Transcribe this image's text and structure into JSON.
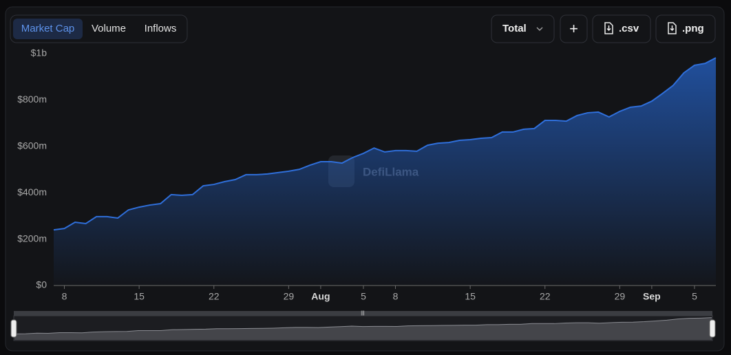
{
  "ui": {
    "tabs": [
      "Market Cap",
      "Volume",
      "Inflows"
    ],
    "active_tab": 0,
    "buttons": [
      "Total",
      "+",
      ".csv",
      ".png"
    ],
    "watermark": "DefiLlama"
  },
  "chart_data": {
    "type": "area",
    "color": "#2f6fdb",
    "categories": [
      null,
      "8",
      null,
      null,
      null,
      null,
      null,
      null,
      "15",
      null,
      null,
      null,
      null,
      null,
      null,
      "22",
      null,
      null,
      null,
      null,
      null,
      null,
      "29",
      null,
      null,
      "Aug",
      null,
      null,
      null,
      "5",
      null,
      null,
      "8",
      null,
      null,
      null,
      null,
      null,
      null,
      "15",
      null,
      null,
      null,
      null,
      null,
      null,
      "22",
      null,
      null,
      null,
      null,
      null,
      null,
      "29",
      null,
      null,
      "Sep",
      null,
      null,
      null,
      "5",
      null,
      null
    ],
    "values": [
      240000000,
      246000000,
      273000000,
      267000000,
      297000000,
      297000000,
      291000000,
      326000000,
      338000000,
      347000000,
      353000000,
      392000000,
      389000000,
      392000000,
      430000000,
      436000000,
      448000000,
      457000000,
      478000000,
      478000000,
      481000000,
      487000000,
      493000000,
      501000000,
      519000000,
      534000000,
      534000000,
      528000000,
      552000000,
      570000000,
      593000000,
      576000000,
      582000000,
      582000000,
      579000000,
      605000000,
      614000000,
      617000000,
      626000000,
      629000000,
      635000000,
      638000000,
      662000000,
      662000000,
      674000000,
      677000000,
      712000000,
      712000000,
      709000000,
      733000000,
      745000000,
      748000000,
      727000000,
      751000000,
      769000000,
      774000000,
      795000000,
      828000000,
      863000000,
      917000000,
      950000000,
      958000000,
      982000000
    ],
    "ylim": [
      0,
      1000000000
    ],
    "yticks": [
      {
        "value": 0,
        "label": "$0"
      },
      {
        "value": 200000000,
        "label": "$200m"
      },
      {
        "value": 400000000,
        "label": "$400m"
      },
      {
        "value": 600000000,
        "label": "$600m"
      },
      {
        "value": 800000000,
        "label": "$800m"
      },
      {
        "value": 1000000000,
        "label": "$1b"
      }
    ]
  }
}
